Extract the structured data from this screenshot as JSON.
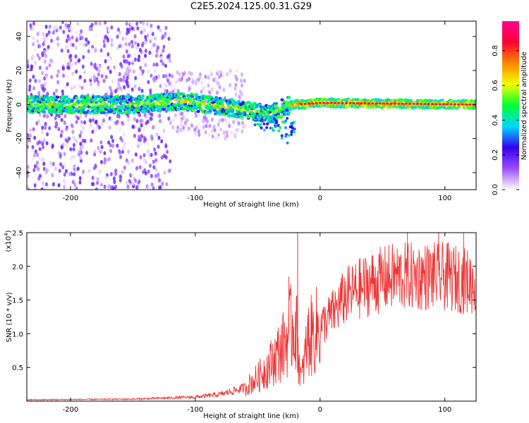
{
  "title": "C2E5.2024.125.00.31.G29",
  "colorbar": {
    "label": "Normalized spectral amplitude",
    "ticks": [
      "0.0",
      "0.2",
      "0.4",
      "0.6",
      "0.8"
    ],
    "range": [
      0,
      0.97
    ],
    "colors": [
      "#ffffff",
      "#9a4dff",
      "#3300ee",
      "#00d8ff",
      "#00ff30",
      "#f0ff00",
      "#ff8800",
      "#ff0033",
      "#ff0090"
    ]
  },
  "chart_data": [
    {
      "type": "heatmap",
      "xlabel": "Height of straight line (km)",
      "ylabel": "Frequency (Hz)",
      "xlim": [
        -235,
        125
      ],
      "ylim": [
        -50,
        49
      ],
      "xticks": [
        -200,
        -100,
        0,
        100
      ],
      "yticks": [
        -40,
        -20,
        0,
        20,
        40
      ],
      "xtick_labels": [
        "-200",
        "-100",
        "0",
        "100"
      ],
      "ytick_labels": [
        "-40",
        "-20",
        "0",
        "20",
        "40"
      ],
      "ridge": [
        {
          "x": -235,
          "center": 0
        },
        {
          "x": -150,
          "center": 0
        },
        {
          "x": -110,
          "center": 2
        },
        {
          "x": -80,
          "center": -1
        },
        {
          "x": -60,
          "center": -3
        },
        {
          "x": -40,
          "center": -6
        },
        {
          "x": -28,
          "center": -1
        },
        {
          "x": -20,
          "center": 0
        },
        {
          "x": 0,
          "center": 1
        },
        {
          "x": 125,
          "center": 0
        }
      ]
    },
    {
      "type": "line",
      "xlabel": "Height of straight line (km)",
      "ylabel": "SNR (10 * v/v)",
      "scale_label": "(x10",
      "scale_exponent": "4",
      "scale_suffix": ")",
      "xlim": [
        -235,
        125
      ],
      "ylim": [
        0,
        2.5
      ],
      "xticks": [
        -200,
        -100,
        0,
        100
      ],
      "yticks": [
        0.5,
        1.0,
        1.5,
        2.0,
        2.5
      ],
      "xtick_labels": [
        "-200",
        "-100",
        "0",
        "100"
      ],
      "ytick_labels": [
        "0.5",
        "1.0",
        "1.5",
        "2.0",
        "2.5"
      ],
      "series": [
        {
          "color": "#ee3333",
          "envelope": [
            {
              "x": -235,
              "y": 0.02
            },
            {
              "x": -150,
              "y": 0.03
            },
            {
              "x": -100,
              "y": 0.06
            },
            {
              "x": -80,
              "y": 0.1
            },
            {
              "x": -60,
              "y": 0.2
            },
            {
              "x": -50,
              "y": 0.35
            },
            {
              "x": -40,
              "y": 0.55
            },
            {
              "x": -30,
              "y": 0.8
            },
            {
              "x": -20,
              "y": 1.2
            },
            {
              "x": -15,
              "y": 0.3
            },
            {
              "x": -10,
              "y": 0.9
            },
            {
              "x": 0,
              "y": 1.1
            },
            {
              "x": 10,
              "y": 1.3
            },
            {
              "x": 20,
              "y": 1.55
            },
            {
              "x": 40,
              "y": 1.75
            },
            {
              "x": 60,
              "y": 1.85
            },
            {
              "x": 80,
              "y": 1.85
            },
            {
              "x": 100,
              "y": 1.85
            },
            {
              "x": 125,
              "y": 1.75
            }
          ],
          "spikes": [
            {
              "x": -18,
              "y": 2.5
            },
            {
              "x": -25,
              "y": 1.85
            },
            {
              "x": 70,
              "y": 2.5
            },
            {
              "x": 95,
              "y": 2.5
            },
            {
              "x": 115,
              "y": 2.5
            }
          ]
        }
      ]
    }
  ]
}
